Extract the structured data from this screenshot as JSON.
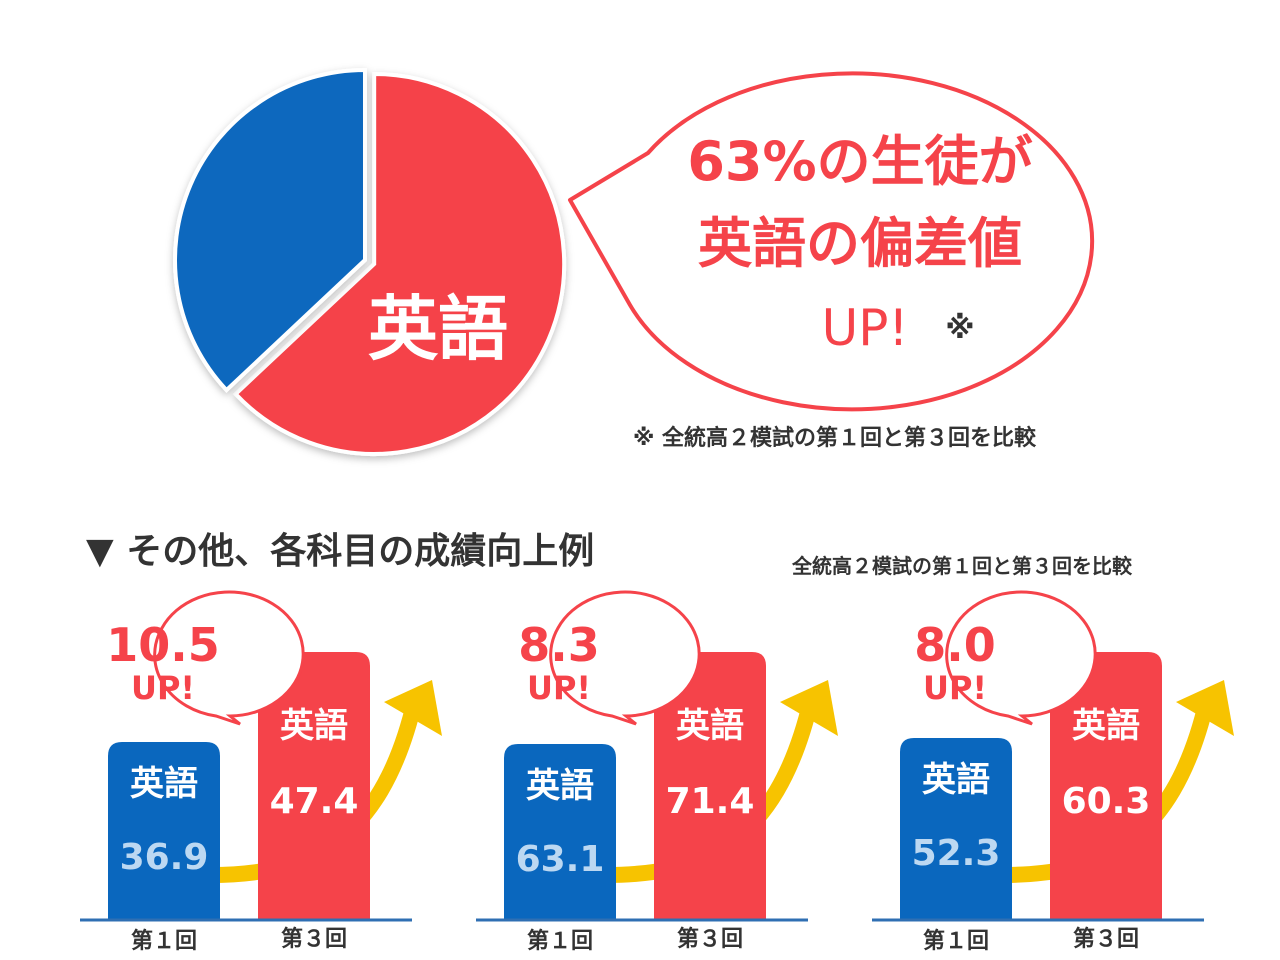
{
  "chart_data": [
    {
      "type": "pie",
      "slices": [
        {
          "label": "英語",
          "value": 63,
          "color": "#f5434a"
        },
        {
          "label": "",
          "value": 37,
          "color": "#0a67be"
        }
      ]
    },
    {
      "type": "bar",
      "categories": [
        "第１回",
        "第３回"
      ],
      "bar_labels": [
        "英語",
        "英語"
      ],
      "values": [
        36.9,
        47.4
      ],
      "increase": "10.5",
      "increase_suffix": "UP!"
    },
    {
      "type": "bar",
      "categories": [
        "第１回",
        "第３回"
      ],
      "bar_labels": [
        "英語",
        "英語"
      ],
      "values": [
        63.1,
        71.4
      ],
      "increase": "8.3",
      "increase_suffix": "UP!"
    },
    {
      "type": "bar",
      "categories": [
        "第１回",
        "第３回"
      ],
      "bar_labels": [
        "英語",
        "英語"
      ],
      "values": [
        52.3,
        60.3
      ],
      "increase": "8.0",
      "increase_suffix": "UP!"
    }
  ],
  "headline": {
    "line1": "63%の生徒が",
    "line2": "英語の偏差値",
    "line3": "UP!",
    "mark": "※"
  },
  "note": "※ 全統高２模試の第１回と第３回を比較",
  "section": {
    "title": "▼ その他、各科目の成績向上例",
    "note": "全統高２模試の第１回と第３回を比較"
  },
  "colors": {
    "red": "#f5434a",
    "blue": "#0a67be",
    "arrow": "#f7c300",
    "light_blue_text": "#bcd8f2"
  }
}
